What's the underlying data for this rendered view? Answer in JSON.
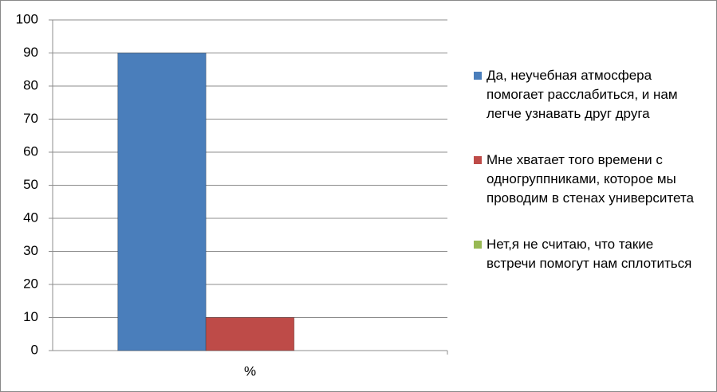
{
  "chart_data": {
    "type": "bar",
    "categories": [
      "%"
    ],
    "series": [
      {
        "name": "Да, неучебная атмосфера помогает расслабиться, и нам легче узнавать друг друга",
        "color": "#4a7ebb",
        "values": [
          90
        ]
      },
      {
        "name": "Мне хватает того времени с одногруппниками, которое мы проводим в стенах университета",
        "color": "#be4b48",
        "values": [
          10
        ]
      },
      {
        "name": "Нет,я не считаю, что такие встречи помогут нам сплотиться",
        "color": "#98b954",
        "values": [
          0
        ]
      }
    ],
    "ylim": [
      0,
      100
    ],
    "yticks": [
      0,
      10,
      20,
      30,
      40,
      50,
      60,
      70,
      80,
      90,
      100
    ],
    "grid": true,
    "legend": "right"
  }
}
